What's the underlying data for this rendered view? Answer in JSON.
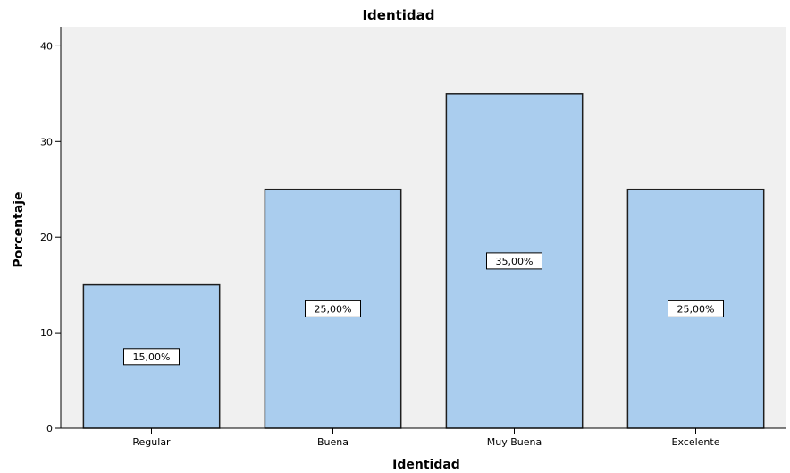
{
  "colors": {
    "plot_background": "#f0f0f0",
    "bar_fill": "#aacdee",
    "bar_stroke": "#1e1e1e",
    "axis": "#000000"
  },
  "chart_data": {
    "type": "bar",
    "title": "Identidad",
    "xlabel": "Identidad",
    "ylabel": "Porcentaje",
    "categories": [
      "Regular",
      "Buena",
      "Muy Buena",
      "Excelente"
    ],
    "values": [
      15,
      25,
      35,
      25
    ],
    "data_labels": [
      "15,00%",
      "25,00%",
      "35,00%",
      "25,00%"
    ],
    "ylim": [
      0,
      42
    ],
    "yticks": [
      0,
      10,
      20,
      30,
      40
    ],
    "grid": false,
    "legend": "none"
  }
}
